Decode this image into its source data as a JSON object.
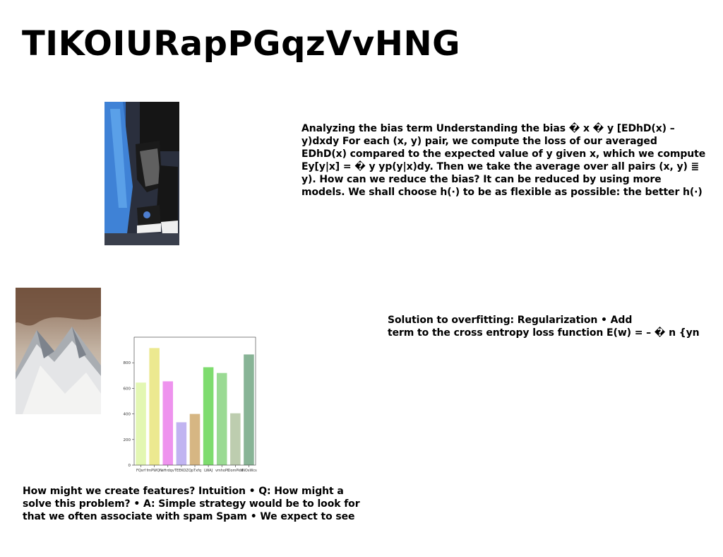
{
  "slide": {
    "title": "TIKOIURapPGqzVvHNG",
    "paragraph_bias": [
      "Analyzing the bias term Understanding the bias � x � y [EDhD(x) –",
      "y)dxdy For each (x, y) pair, we compute the loss of our averaged",
      "EDhD(x) compared to the expected value of y given x, which we compute",
      "Ey[y|x] = � y yp(y|x)dy. Then we take the average over all pairs (x, y) ≣",
      "y). How can we reduce the bias? It can be reduced by using more",
      "models. We shall choose h(·) to be as flexible as possible: the better h(·)"
    ],
    "paragraph_regularization": [
      "Solution to overfitting: Regularization • Add",
      "term to the cross entropy loss function E(w) = – � n {yn"
    ],
    "paragraph_features": [
      "How might we create features? Intuition • Q: How might a",
      "solve this problem? • A: Simple strategy would be to look for",
      "that we often associate with spam Spam • We expect to see"
    ]
  },
  "chart_data": {
    "type": "bar",
    "categories": [
      "FQsrf",
      "fmPWQN",
      "eHrdqv",
      "TEEKOZ",
      "QpTxfq",
      "LWAJ",
      "vmhoPI",
      "DomPkN",
      "rNOsWcs"
    ],
    "values": [
      645,
      915,
      655,
      335,
      400,
      765,
      720,
      405,
      865
    ],
    "colors": [
      "#e3f7b3",
      "#ece990",
      "#ee93ee",
      "#c1b4f1",
      "#d6b683",
      "#7edc6e",
      "#9ada93",
      "#bdcdaf",
      "#88b496"
    ],
    "yticks": [
      0,
      200,
      400,
      600,
      800
    ],
    "ylim": [
      0,
      1000
    ],
    "title": "",
    "xlabel": "",
    "ylabel": ""
  }
}
